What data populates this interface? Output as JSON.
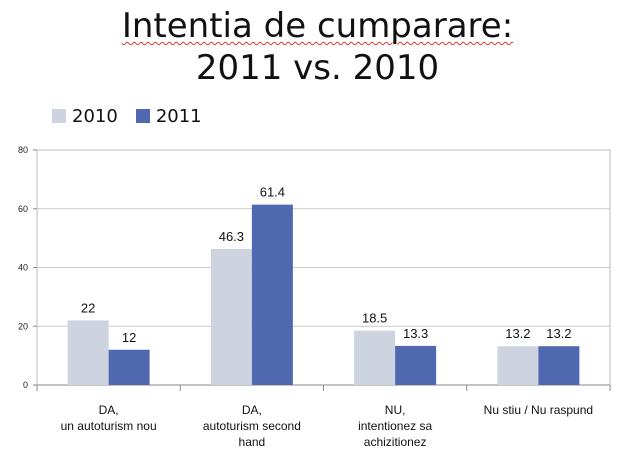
{
  "title_line1": "Intentia de cumparare:",
  "title_line2": "2011 vs. 2010",
  "chart_data": {
    "type": "bar",
    "categories": [
      [
        "DA,",
        "un autoturism nou"
      ],
      [
        "DA,",
        "autoturism second",
        "hand"
      ],
      [
        "NU,",
        "intentionez sa",
        "achizitionez"
      ],
      [
        "Nu stiu / Nu raspund"
      ]
    ],
    "series": [
      {
        "name": "2010",
        "values": [
          22,
          46.3,
          18.5,
          13.2
        ],
        "value_labels": [
          "22",
          "46.3",
          "18.5",
          "13.2"
        ],
        "color": "#cdd4e0"
      },
      {
        "name": "2011",
        "values": [
          12,
          61.4,
          13.3,
          13.2
        ],
        "value_labels": [
          "12",
          "61.4",
          "13.3",
          "13.2"
        ],
        "color": "#4f68b0"
      }
    ],
    "ylim": [
      0,
      80
    ],
    "yticks": [
      0,
      20,
      40,
      60,
      80
    ],
    "grid": true,
    "legend": "top-left"
  }
}
